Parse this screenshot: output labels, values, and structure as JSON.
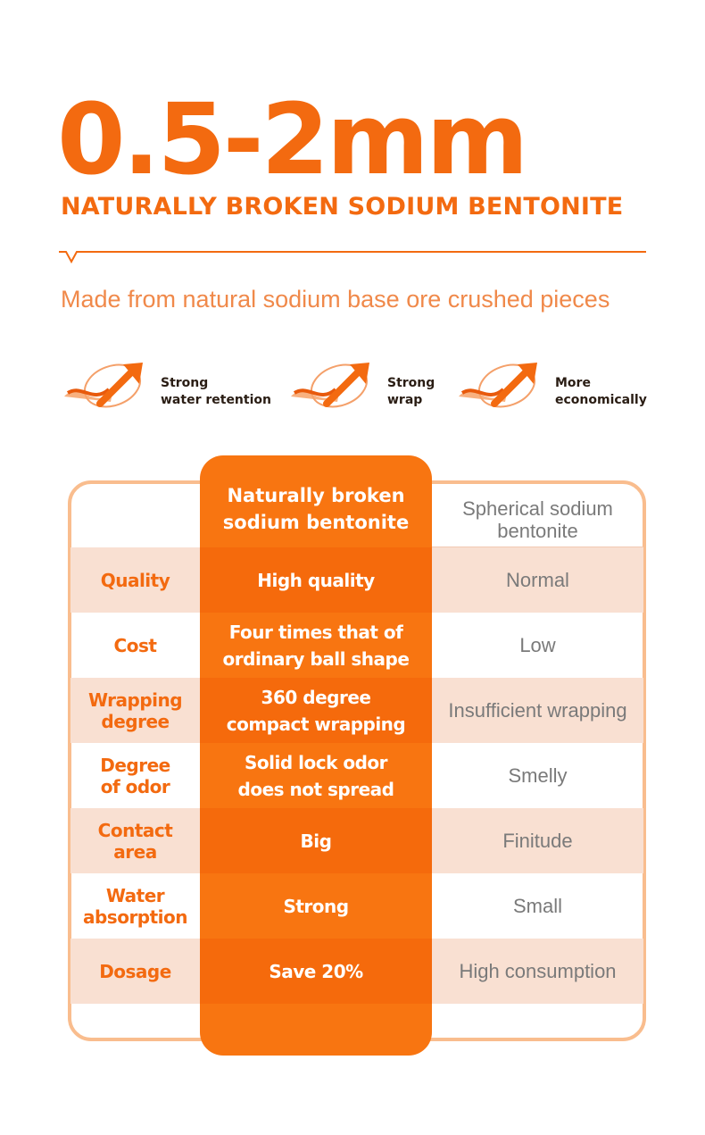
{
  "header": {
    "size_range": "0.5-2mm",
    "product_name": "NATURALLY BROKEN SODIUM BENTONITE",
    "tagline": "Made from natural sodium base ore crushed pieces"
  },
  "features": [
    {
      "line1": "Strong",
      "line2": "water retention",
      "icon": "swirl-arrow-icon"
    },
    {
      "line1": "Strong",
      "line2": "wrap",
      "icon": "swirl-arrow-icon"
    },
    {
      "line1": "More",
      "line2": "economically",
      "icon": "swirl-arrow-icon"
    }
  ],
  "comparison": {
    "col2_header": "Naturally broken sodium bentonite",
    "col3_header": "Spherical sodium bentonite",
    "rows": [
      {
        "attribute": "Quality",
        "ours": "High quality",
        "theirs": "Normal"
      },
      {
        "attribute": "Cost",
        "ours": "Four times that of ordinary ball shape",
        "theirs": "Low"
      },
      {
        "attribute": "Wrapping degree",
        "ours": "360 degree compact wrapping",
        "theirs": "Insufficient wrapping"
      },
      {
        "attribute": "Degree of odor",
        "ours": "Solid lock odor does not spread",
        "theirs": "Smelly"
      },
      {
        "attribute": "Contact area",
        "ours": "Big",
        "theirs": "Finitude"
      },
      {
        "attribute": "Water absorption",
        "ours": "Strong",
        "theirs": "Small"
      },
      {
        "attribute": "Dosage",
        "ours": "Save 20%",
        "theirs": "High consumption"
      }
    ]
  },
  "colors": {
    "brand_orange": "#f36a10",
    "highlight_column": "#f87511",
    "frame_border": "#f9bd8e",
    "row_tint": "#f9e0d2",
    "muted_text": "#7a7a7a"
  }
}
